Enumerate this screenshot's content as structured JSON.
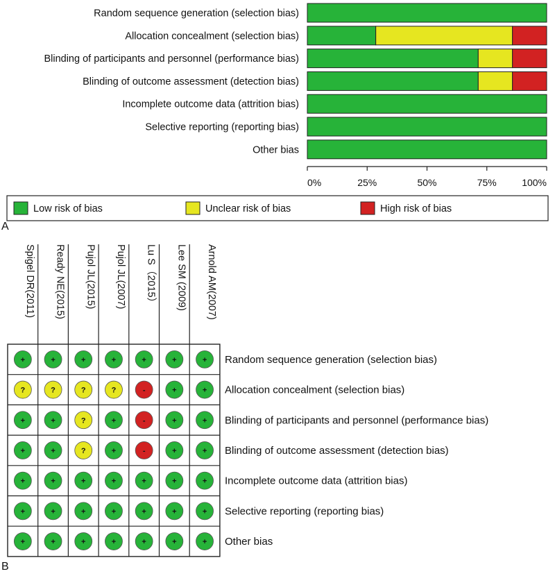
{
  "chart_data": [
    {
      "type": "bar",
      "stacked": true,
      "orientation": "horizontal",
      "panel_label": "A",
      "categories": [
        "Random sequence generation (selection bias)",
        "Allocation concealment (selection bias)",
        "Blinding of participants and personnel (performance bias)",
        "Blinding of outcome assessment (detection bias)",
        "Incomplete outcome data (attrition bias)",
        "Selective reporting (reporting bias)",
        "Other bias"
      ],
      "series": [
        {
          "name": "Low risk of bias",
          "color": "#27b339",
          "values": [
            100,
            28.6,
            71.4,
            71.4,
            100,
            100,
            100
          ]
        },
        {
          "name": "Unclear risk of bias",
          "color": "#e6e620",
          "values": [
            0,
            57.1,
            14.3,
            14.3,
            0,
            0,
            0
          ]
        },
        {
          "name": "High risk of bias",
          "color": "#d22222",
          "values": [
            0,
            14.3,
            14.3,
            14.3,
            0,
            0,
            0
          ]
        }
      ],
      "xlim": [
        0,
        100
      ],
      "xticks": [
        "0%",
        "25%",
        "50%",
        "75%",
        "100%"
      ],
      "legend": [
        "Low risk of bias",
        "Unclear risk of bias",
        "High risk of bias"
      ],
      "legend_position": "bottom"
    },
    {
      "type": "table",
      "panel_label": "B",
      "studies": [
        "Spigel DR(2011)",
        "Ready NE(2015)",
        "Pujol JL(2015)",
        "Pujol JL(2007)",
        "Lu S（2015）",
        "Lee SM (2009)",
        "Arnold AM(2007)"
      ],
      "domains": [
        "Random sequence generation (selection bias)",
        "Allocation concealment (selection bias)",
        "Blinding of participants and personnel (performance bias)",
        "Blinding of outcome assessment (detection bias)",
        "Incomplete outcome data (attrition bias)",
        "Selective reporting (reporting bias)",
        "Other bias"
      ],
      "judgements": [
        [
          "+",
          "+",
          "+",
          "+",
          "+",
          "+",
          "+"
        ],
        [
          "?",
          "?",
          "?",
          "?",
          "-",
          "+",
          "+"
        ],
        [
          "+",
          "+",
          "?",
          "+",
          "-",
          "+",
          "+"
        ],
        [
          "+",
          "+",
          "?",
          "+",
          "-",
          "+",
          "+"
        ],
        [
          "+",
          "+",
          "+",
          "+",
          "+",
          "+",
          "+"
        ],
        [
          "+",
          "+",
          "+",
          "+",
          "+",
          "+",
          "+"
        ],
        [
          "+",
          "+",
          "+",
          "+",
          "+",
          "+",
          "+"
        ]
      ],
      "symbol_colors": {
        "+": "#27b339",
        "?": "#e6e620",
        "-": "#d22222"
      }
    }
  ]
}
